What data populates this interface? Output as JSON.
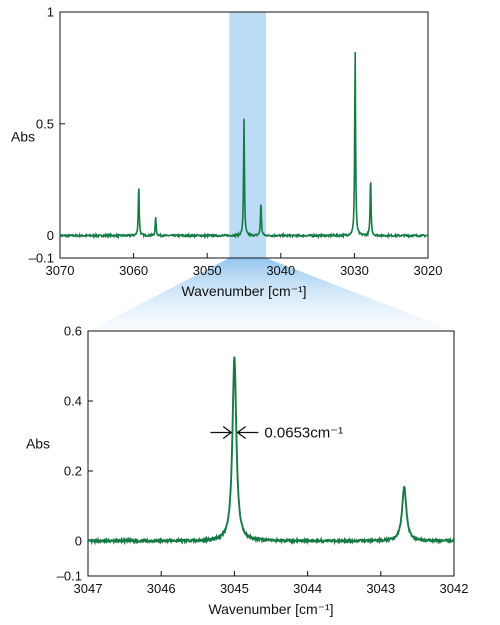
{
  "colors": {
    "line": "#157a45",
    "highlight": "#bcdcf5",
    "zoom_fade": "#cfe5f8",
    "axis": "#111111"
  },
  "chart_data": [
    {
      "type": "line",
      "name": "overview",
      "xlabel": "Wavenumber [cm⁻¹]",
      "ylabel": "Abs",
      "xlim": [
        3070,
        3020
      ],
      "ylim": [
        -0.1,
        1
      ],
      "x_reversed": true,
      "x_ticks": [
        3070,
        3060,
        3050,
        3040,
        3030,
        3020
      ],
      "x_tick_labels": [
        "3070",
        "3060",
        "3050",
        "3040",
        "3030",
        "3020"
      ],
      "y_ticks": [
        -0.1,
        0,
        0.5,
        1
      ],
      "y_tick_labels": [
        "–0.1",
        "0",
        "0.5",
        "1"
      ],
      "baseline": 0.0,
      "noise": 0.004,
      "peaks": [
        {
          "x": 3059.3,
          "y": 0.23,
          "width": 0.07
        },
        {
          "x": 3057.0,
          "y": 0.085,
          "width": 0.07
        },
        {
          "x": 3045.0,
          "y": 0.525,
          "width": 0.07
        },
        {
          "x": 3042.7,
          "y": 0.155,
          "width": 0.07
        },
        {
          "x": 3029.9,
          "y": 0.84,
          "width": 0.07
        },
        {
          "x": 3027.8,
          "y": 0.265,
          "width": 0.07
        }
      ],
      "highlight_range": [
        3047,
        3042
      ]
    },
    {
      "type": "line",
      "name": "zoom",
      "xlabel": "Wavenumber [cm⁻¹]",
      "ylabel": "Abs",
      "xlim": [
        3047,
        3042
      ],
      "ylim": [
        -0.1,
        0.6
      ],
      "x_reversed": true,
      "x_ticks": [
        3047,
        3046,
        3045,
        3044,
        3043,
        3042
      ],
      "x_tick_labels": [
        "3047",
        "3046",
        "3045",
        "3044",
        "3043",
        "3042"
      ],
      "y_ticks": [
        -0.1,
        0,
        0.2,
        0.4,
        0.6
      ],
      "y_tick_labels": [
        "–0.1",
        "0",
        "0.2",
        "0.4",
        "0.6"
      ],
      "baseline": 0.0,
      "noise": 0.003,
      "peaks": [
        {
          "x": 3045.0,
          "y": 0.525,
          "width": 0.032
        },
        {
          "x": 3042.68,
          "y": 0.155,
          "width": 0.035
        }
      ],
      "annotations": [
        {
          "text": "0.0653cm⁻¹",
          "at_x": 3045.0,
          "at_y": 0.31
        }
      ]
    }
  ]
}
